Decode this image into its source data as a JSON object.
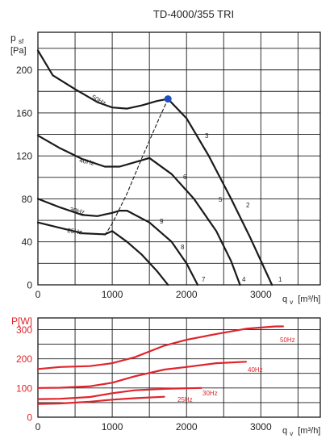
{
  "title": "TD-4000/355 TRI",
  "colors": {
    "ink": "#1a1a1a",
    "power": "#e0242b",
    "marker": "#1f4fbf",
    "grid": "#1a1a1a"
  },
  "chart_data": [
    {
      "type": "line",
      "name": "pressure",
      "ylabel_main": "p",
      "ylabel_sub": "sf",
      "ylabel_unit": "[Pa]",
      "xlabel_main": "q",
      "xlabel_sub": "v",
      "xlabel_unit": "[m³/h]",
      "xlim": [
        0,
        3800
      ],
      "ylim": [
        0,
        235
      ],
      "xticks": [
        0,
        1000,
        2000,
        3000
      ],
      "yticks": [
        0,
        40,
        80,
        120,
        160,
        200
      ],
      "grid": true,
      "series": [
        {
          "name": "50Hz",
          "x": [
            0,
            200,
            500,
            800,
            1000,
            1200,
            1400,
            1600,
            1750
          ],
          "y": [
            218,
            195,
            182,
            170,
            165,
            164,
            167,
            171,
            173
          ]
        },
        {
          "name": "40Hz",
          "x": [
            0,
            300,
            600,
            900,
            1100,
            1300,
            1500
          ],
          "y": [
            139,
            127,
            117,
            110,
            110,
            114,
            118
          ]
        },
        {
          "name": "30Hz",
          "x": [
            0,
            300,
            600,
            800,
            1000,
            1100,
            1200
          ],
          "y": [
            80,
            72,
            65,
            64,
            67,
            69,
            69
          ]
        },
        {
          "name": "25Hz",
          "x": [
            0,
            300,
            600,
            900,
            1000
          ],
          "y": [
            58,
            53,
            48,
            47,
            50
          ]
        },
        {
          "name": "system",
          "x": [
            1750,
            1600,
            1400,
            1200,
            1000,
            900
          ],
          "y": [
            173,
            150,
            118,
            85,
            57,
            46
          ]
        },
        {
          "x": [
            1750,
            2000,
            2300,
            2600,
            2850,
            3050,
            3150
          ],
          "y": [
            173,
            155,
            120,
            80,
            45,
            15,
            0
          ]
        },
        {
          "x": [
            1500,
            1800,
            2100,
            2400,
            2600,
            2720
          ],
          "y": [
            118,
            103,
            80,
            50,
            22,
            0
          ]
        },
        {
          "x": [
            1200,
            1500,
            1800,
            2000,
            2150
          ],
          "y": [
            69,
            58,
            40,
            20,
            0
          ]
        },
        {
          "x": [
            1000,
            1200,
            1400,
            1600,
            1750
          ],
          "y": [
            50,
            40,
            28,
            13,
            0
          ]
        }
      ],
      "curve_labels": [
        "50Hz",
        "40Hz",
        "30Hz",
        "25Hz",
        "1",
        "2",
        "3",
        "4",
        "5",
        "6",
        "7",
        "8",
        "9"
      ],
      "operating_point": {
        "x": 1750,
        "y": 173
      }
    },
    {
      "type": "line",
      "name": "power",
      "ylabel": "P[W]",
      "xlabel_main": "q",
      "xlabel_sub": "v",
      "xlabel_unit": "[m³/h]",
      "xlim": [
        0,
        3800
      ],
      "ylim": [
        0,
        340
      ],
      "xticks": [
        0,
        1000,
        2000,
        3000
      ],
      "yticks": [
        0,
        100,
        200,
        300
      ],
      "grid": true,
      "series": [
        {
          "name": "50Hz",
          "x": [
            0,
            300,
            700,
            1000,
            1300,
            1700,
            2000,
            2400,
            2800,
            3200,
            3300
          ],
          "y": [
            165,
            172,
            175,
            185,
            205,
            245,
            265,
            285,
            303,
            311,
            311
          ]
        },
        {
          "name": "40Hz",
          "x": [
            0,
            300,
            700,
            1000,
            1300,
            1700,
            2000,
            2400,
            2800
          ],
          "y": [
            100,
            101,
            106,
            118,
            140,
            163,
            172,
            185,
            190
          ]
        },
        {
          "name": "30Hz",
          "x": [
            0,
            300,
            700,
            1000,
            1300,
            1700,
            2000,
            2200
          ],
          "y": [
            62,
            63,
            69,
            82,
            92,
            97,
            99,
            100
          ]
        },
        {
          "name": "25Hz",
          "x": [
            0,
            300,
            700,
            1000,
            1300,
            1700
          ],
          "y": [
            45,
            47,
            53,
            60,
            65,
            70
          ]
        }
      ]
    }
  ]
}
